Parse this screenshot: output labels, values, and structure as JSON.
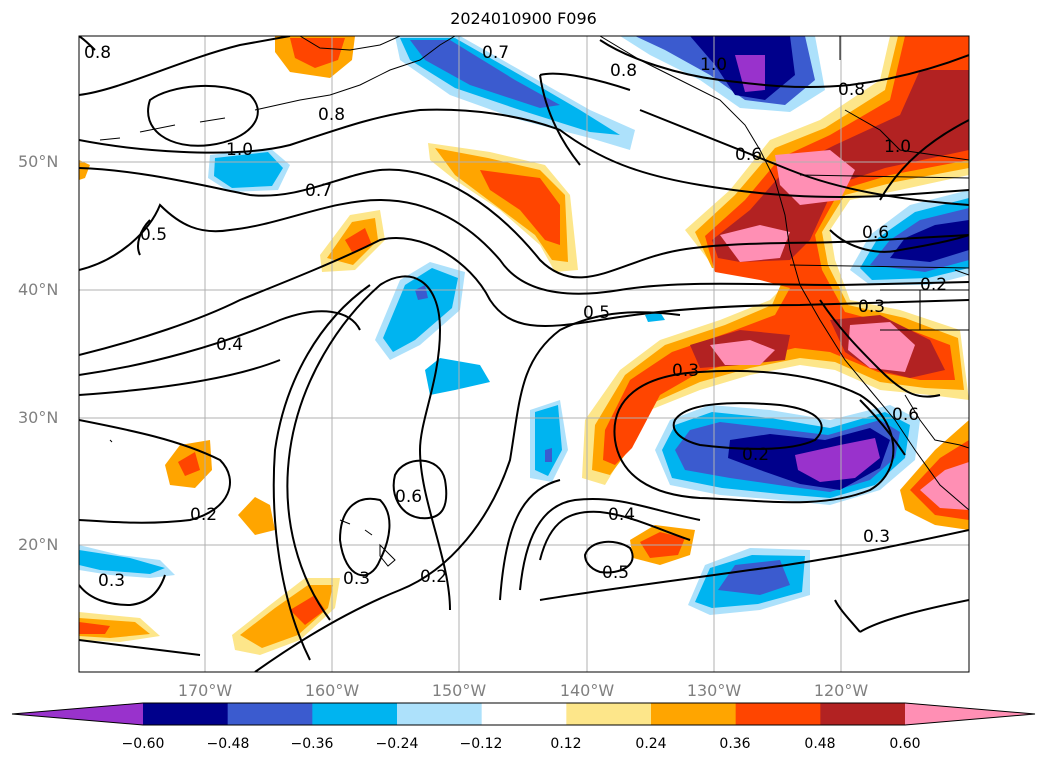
{
  "title": "2024010900 F096",
  "lat_labels": [
    "50°N",
    "40°N",
    "30°N",
    "20°N"
  ],
  "lon_labels": [
    "170°W",
    "160°W",
    "150°W",
    "140°W",
    "130°W",
    "120°W"
  ],
  "colorbar": {
    "ticks": [
      "−0.60",
      "−0.48",
      "−0.36",
      "−0.24",
      "−0.12",
      "0.12",
      "0.24",
      "0.36",
      "0.48",
      "0.60"
    ],
    "colors": [
      "#9932cc",
      "#00008b",
      "#3b5bcf",
      "#00b4f0",
      "#ade1fb",
      "#ffffff",
      "#fde68a",
      "#ffa500",
      "#ff4500",
      "#b22222",
      "#ff8fb4"
    ]
  },
  "contour_labels": [
    "0.8",
    "0.7",
    "0.8",
    "1.0",
    "0.8",
    "0.8",
    "1.0",
    "1.0",
    "0.7",
    "0.5",
    "0.6",
    "0.2",
    "0.5",
    "0.3",
    "0.4",
    "0.3",
    "0.6",
    "0.2",
    "0.6",
    "0.2",
    "0.2",
    "0.4",
    "0.5",
    "0.3",
    "0.3",
    "0.3",
    "0.6"
  ]
}
